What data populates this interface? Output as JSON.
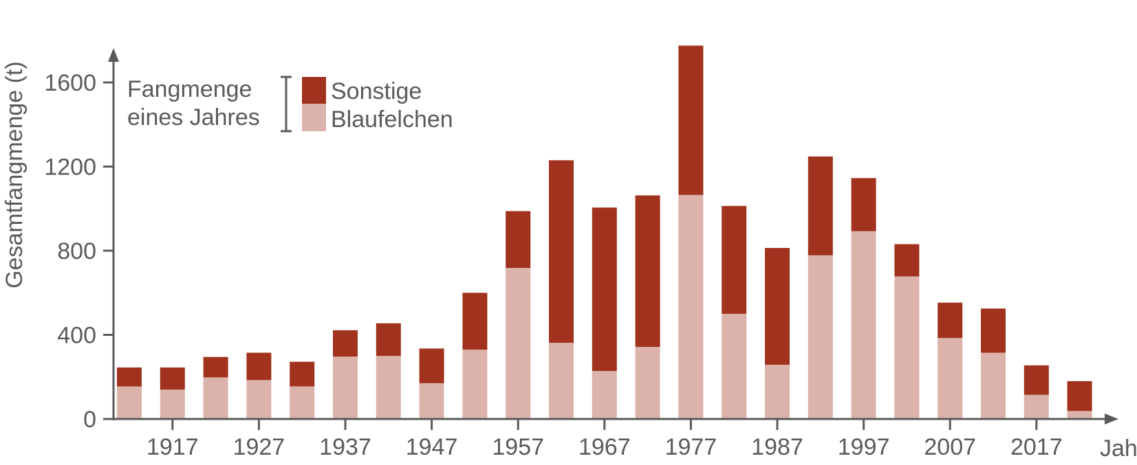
{
  "chart_data": {
    "type": "bar",
    "stacked": true,
    "ylabel": "Gesamtfangmenge (t)",
    "xlabel": "Jahr",
    "ylim": [
      0,
      1750
    ],
    "y_ticks": [
      0,
      400,
      800,
      1200,
      1600
    ],
    "x_tick_labels": [
      "1917",
      "1927",
      "1937",
      "1947",
      "1957",
      "1967",
      "1977",
      "1987",
      "1997",
      "2007",
      "2017"
    ],
    "categories": [
      "1912",
      "1917",
      "1922",
      "1927",
      "1932",
      "1937",
      "1942",
      "1947",
      "1952",
      "1957",
      "1962",
      "1967",
      "1972",
      "1977",
      "1982",
      "1987",
      "1992",
      "1997",
      "2002",
      "2007",
      "2012",
      "2017",
      "2022"
    ],
    "series": [
      {
        "name": "Blaufelchen",
        "color": "#dcb3ab",
        "values": [
          155,
          140,
          198,
          185,
          155,
          297,
          300,
          170,
          330,
          718,
          362,
          228,
          343,
          1065,
          500,
          258,
          778,
          893,
          678,
          385,
          315,
          115,
          38
        ]
      },
      {
        "name": "Sonstige",
        "color": "#a0321e",
        "values": [
          90,
          105,
          97,
          130,
          117,
          125,
          155,
          165,
          270,
          270,
          868,
          777,
          720,
          710,
          513,
          555,
          470,
          252,
          153,
          168,
          210,
          140,
          142
        ]
      }
    ],
    "legend": {
      "title_lines": [
        "Fangmenge",
        "eines Jahres"
      ],
      "placement": "top-left"
    }
  }
}
